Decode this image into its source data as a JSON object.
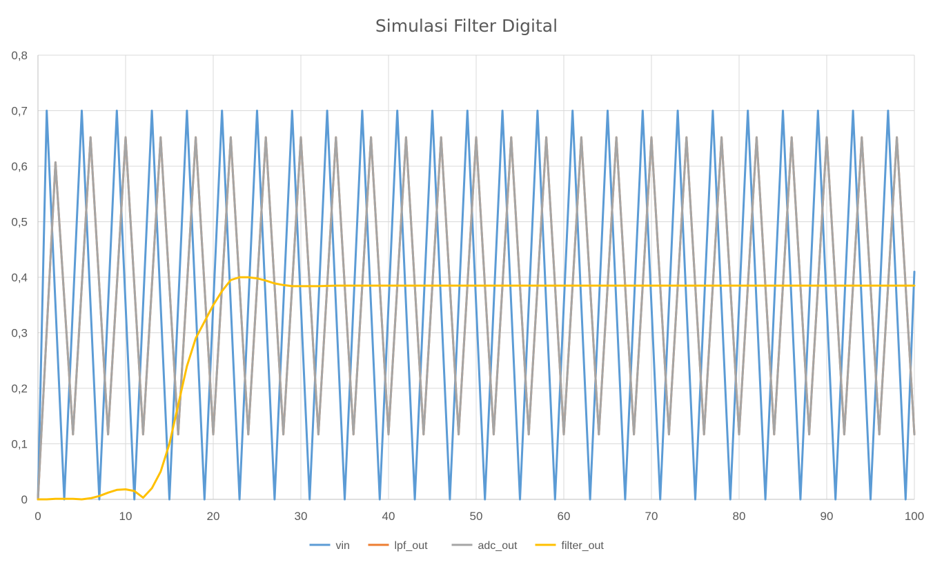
{
  "chart_data": {
    "type": "line",
    "title": "Simulasi Filter Digital",
    "xlabel": "",
    "ylabel": "",
    "xlim": [
      0,
      100
    ],
    "ylim": [
      0,
      0.8
    ],
    "x_ticks": [
      "0",
      "10",
      "20",
      "30",
      "40",
      "50",
      "60",
      "70",
      "80",
      "90",
      "100"
    ],
    "y_ticks": [
      "0",
      "0,1",
      "0,2",
      "0,3",
      "0,4",
      "0,5",
      "0,6",
      "0,7",
      "0,8"
    ],
    "grid": true,
    "legend_position": "bottom",
    "series": [
      {
        "name": "vin",
        "color": "#5b9bd5",
        "x": [
          0,
          1,
          3,
          5,
          7,
          9,
          11,
          13,
          15,
          17,
          19,
          21,
          23,
          25,
          27,
          29,
          31,
          33,
          35,
          37,
          39,
          41,
          43,
          45,
          47,
          49,
          51,
          53,
          55,
          57,
          59,
          61,
          63,
          65,
          67,
          69,
          71,
          73,
          75,
          77,
          79,
          81,
          83,
          85,
          87,
          89,
          91,
          93,
          95,
          97,
          99,
          100
        ],
        "y": [
          0,
          0.7,
          0,
          0.7,
          0,
          0.7,
          0,
          0.7,
          0,
          0.7,
          0,
          0.7,
          0,
          0.7,
          0,
          0.7,
          0,
          0.7,
          0,
          0.7,
          0,
          0.7,
          0,
          0.7,
          0,
          0.7,
          0,
          0.7,
          0,
          0.7,
          0,
          0.7,
          0,
          0.7,
          0,
          0.7,
          0,
          0.7,
          0,
          0.7,
          0,
          0.7,
          0,
          0.7,
          0,
          0.7,
          0,
          0.7,
          0,
          0.7,
          0,
          0.41
        ]
      },
      {
        "name": "lpf_out",
        "color": "#ed7d31",
        "x": [
          0,
          2,
          4,
          6,
          8,
          10,
          12,
          14,
          16,
          18,
          20,
          22,
          24,
          26,
          28,
          30,
          32,
          34,
          36,
          38,
          40,
          42,
          44,
          46,
          48,
          50,
          52,
          54,
          56,
          58,
          60,
          62,
          64,
          66,
          68,
          70,
          72,
          74,
          76,
          78,
          80,
          82,
          84,
          86,
          88,
          90,
          92,
          94,
          96,
          98,
          100
        ],
        "y": [
          0,
          0.607,
          0.117,
          0.652,
          0.117,
          0.652,
          0.117,
          0.652,
          0.117,
          0.652,
          0.117,
          0.652,
          0.117,
          0.652,
          0.117,
          0.652,
          0.117,
          0.652,
          0.117,
          0.652,
          0.117,
          0.652,
          0.117,
          0.652,
          0.117,
          0.652,
          0.117,
          0.652,
          0.117,
          0.652,
          0.117,
          0.652,
          0.117,
          0.652,
          0.117,
          0.652,
          0.117,
          0.652,
          0.117,
          0.652,
          0.117,
          0.652,
          0.117,
          0.652,
          0.117,
          0.652,
          0.117,
          0.652,
          0.117,
          0.652,
          0.117
        ]
      },
      {
        "name": "adc_out",
        "color": "#a5a5a5",
        "x": [
          0,
          2,
          4,
          6,
          8,
          10,
          12,
          14,
          16,
          18,
          20,
          22,
          24,
          26,
          28,
          30,
          32,
          34,
          36,
          38,
          40,
          42,
          44,
          46,
          48,
          50,
          52,
          54,
          56,
          58,
          60,
          62,
          64,
          66,
          68,
          70,
          72,
          74,
          76,
          78,
          80,
          82,
          84,
          86,
          88,
          90,
          92,
          94,
          96,
          98,
          100
        ],
        "y": [
          0,
          0.607,
          0.117,
          0.652,
          0.117,
          0.652,
          0.117,
          0.652,
          0.117,
          0.652,
          0.117,
          0.652,
          0.117,
          0.652,
          0.117,
          0.652,
          0.117,
          0.652,
          0.117,
          0.652,
          0.117,
          0.652,
          0.117,
          0.652,
          0.117,
          0.652,
          0.117,
          0.652,
          0.117,
          0.652,
          0.117,
          0.652,
          0.117,
          0.652,
          0.117,
          0.652,
          0.117,
          0.652,
          0.117,
          0.652,
          0.117,
          0.652,
          0.117,
          0.652,
          0.117,
          0.652,
          0.117,
          0.652,
          0.117,
          0.652,
          0.117
        ]
      },
      {
        "name": "filter_out",
        "color": "#ffc000",
        "x": [
          0,
          1,
          2,
          3,
          4,
          5,
          6,
          7,
          8,
          9,
          10,
          11,
          12,
          13,
          14,
          15,
          16,
          17,
          18,
          19,
          20,
          21,
          22,
          23,
          24,
          25,
          26,
          27,
          28,
          29,
          30,
          32,
          34,
          36,
          38,
          40,
          45,
          50,
          55,
          60,
          65,
          70,
          75,
          80,
          85,
          90,
          95,
          100
        ],
        "y": [
          0,
          0,
          0.001,
          0.001,
          0.001,
          0,
          0.002,
          0.006,
          0.012,
          0.017,
          0.018,
          0.015,
          0.003,
          0.02,
          0.05,
          0.1,
          0.17,
          0.24,
          0.29,
          0.32,
          0.35,
          0.375,
          0.395,
          0.4,
          0.4,
          0.398,
          0.394,
          0.389,
          0.386,
          0.384,
          0.384,
          0.384,
          0.385,
          0.385,
          0.385,
          0.385,
          0.385,
          0.385,
          0.385,
          0.385,
          0.385,
          0.385,
          0.385,
          0.385,
          0.385,
          0.385,
          0.385,
          0.385
        ]
      }
    ]
  }
}
